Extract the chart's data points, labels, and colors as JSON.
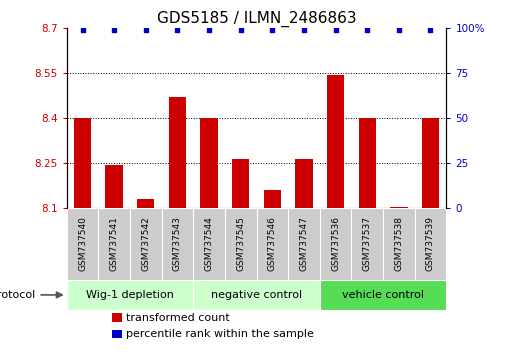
{
  "title": "GDS5185 / ILMN_2486863",
  "samples": [
    "GSM737540",
    "GSM737541",
    "GSM737542",
    "GSM737543",
    "GSM737544",
    "GSM737545",
    "GSM737546",
    "GSM737547",
    "GSM737536",
    "GSM737537",
    "GSM737538",
    "GSM737539"
  ],
  "bar_values": [
    8.4,
    8.245,
    8.13,
    8.47,
    8.4,
    8.265,
    8.16,
    8.265,
    8.545,
    8.4,
    8.105,
    8.4
  ],
  "percentile_values": [
    99,
    99,
    99,
    99,
    99,
    99,
    99,
    99,
    99,
    99,
    99,
    99
  ],
  "bar_color": "#cc0000",
  "percentile_color": "#0000cc",
  "ylim_left": [
    8.1,
    8.7
  ],
  "ylim_right": [
    0,
    100
  ],
  "yticks_left": [
    8.1,
    8.25,
    8.4,
    8.55,
    8.7
  ],
  "yticks_right": [
    0,
    25,
    50,
    75,
    100
  ],
  "ytick_labels_left": [
    "8.1",
    "8.25",
    "8.4",
    "8.55",
    "8.7"
  ],
  "ytick_labels_right": [
    "0",
    "25",
    "50",
    "75",
    "100%"
  ],
  "groups": [
    {
      "label": "Wig-1 depletion",
      "start": 0,
      "end": 3,
      "color": "#ccffcc"
    },
    {
      "label": "negative control",
      "start": 4,
      "end": 7,
      "color": "#ccffcc"
    },
    {
      "label": "vehicle control",
      "start": 8,
      "end": 11,
      "color": "#55dd55"
    }
  ],
  "protocol_label": "protocol",
  "legend_items": [
    {
      "color": "#cc0000",
      "label": "transformed count"
    },
    {
      "color": "#0000cc",
      "label": "percentile rank within the sample"
    }
  ],
  "title_fontsize": 11,
  "tick_fontsize": 7.5,
  "sample_fontsize": 6.5,
  "group_fontsize": 8
}
